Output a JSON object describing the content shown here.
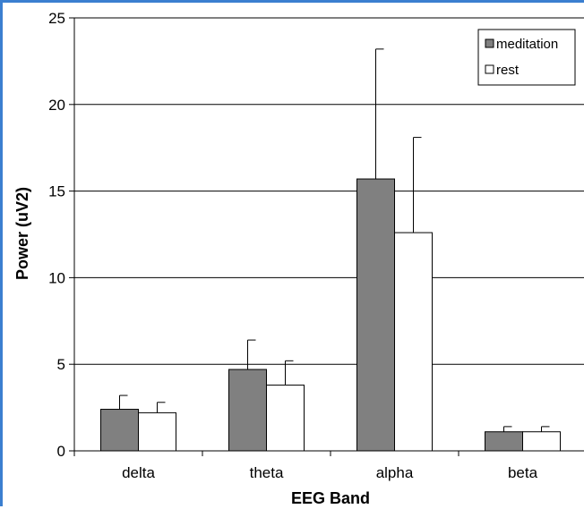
{
  "chart_data": {
    "type": "bar",
    "title": "",
    "xlabel": "EEG Band",
    "ylabel": "Power (uV2)",
    "categories": [
      "delta",
      "theta",
      "alpha",
      "beta"
    ],
    "ylim": [
      0,
      25
    ],
    "yticks": [
      0,
      5,
      10,
      15,
      20,
      25
    ],
    "grid": true,
    "legend_position": "top-right",
    "series": [
      {
        "name": "meditation",
        "color": "#808080",
        "values": [
          2.4,
          4.7,
          15.7,
          1.1
        ],
        "error_upper": [
          0.8,
          1.7,
          7.5,
          0.3
        ]
      },
      {
        "name": "rest",
        "color": "#ffffff",
        "values": [
          2.2,
          3.8,
          12.6,
          1.1
        ],
        "error_upper": [
          0.6,
          1.4,
          5.5,
          0.3
        ]
      }
    ]
  }
}
